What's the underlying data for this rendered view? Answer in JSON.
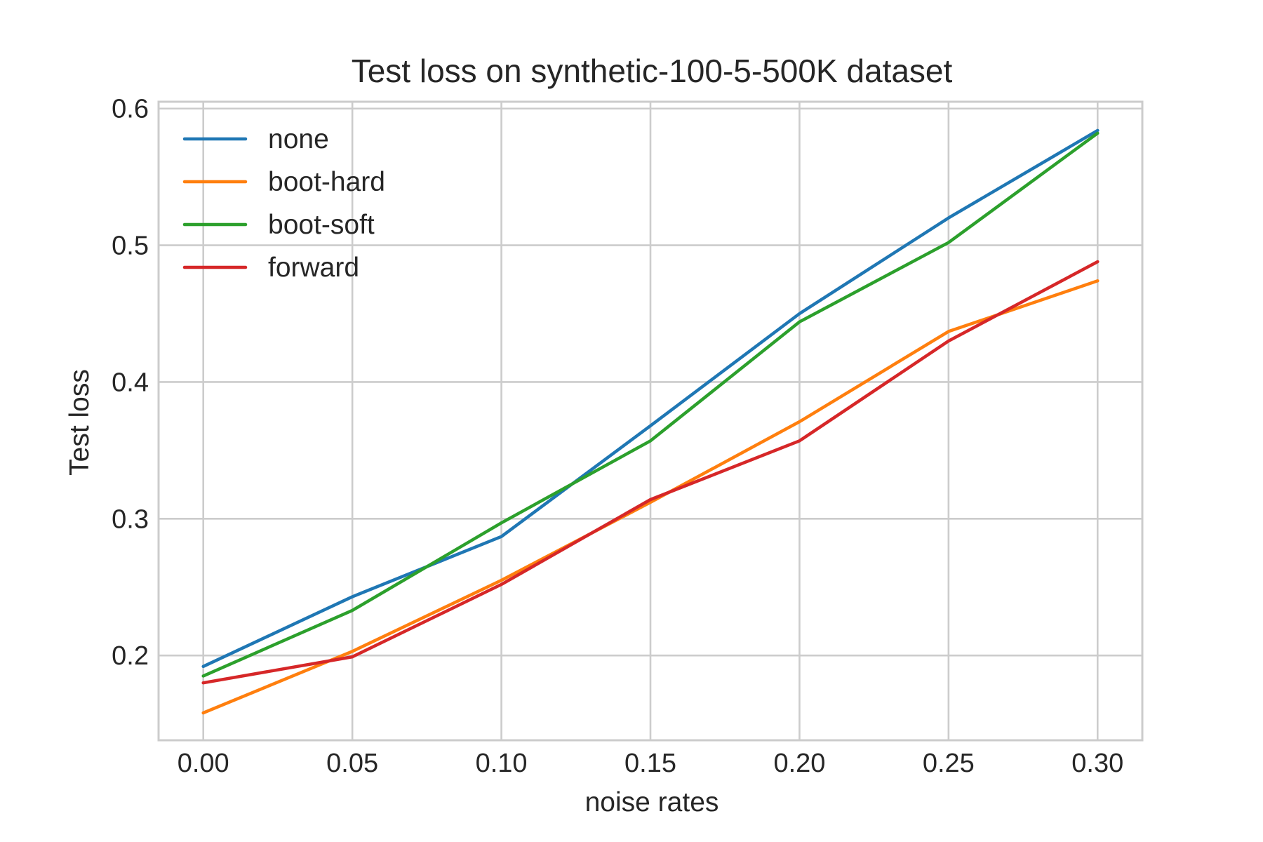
{
  "chart_data": {
    "type": "line",
    "title": "Test loss on synthetic-100-5-500K dataset",
    "xlabel": "noise rates",
    "ylabel": "Test loss",
    "x": [
      0.0,
      0.05,
      0.1,
      0.15,
      0.2,
      0.25,
      0.3
    ],
    "xticks": [
      "0.00",
      "0.05",
      "0.10",
      "0.15",
      "0.20",
      "0.25",
      "0.30"
    ],
    "yticks": [
      "0.2",
      "0.3",
      "0.4",
      "0.5",
      "0.6"
    ],
    "xlim": [
      -0.015,
      0.315
    ],
    "ylim": [
      0.138,
      0.605
    ],
    "grid": true,
    "legend_position": "top-left",
    "series": [
      {
        "name": "none",
        "color": "#1f77b4",
        "values": [
          0.192,
          0.243,
          0.287,
          0.368,
          0.45,
          0.52,
          0.584
        ]
      },
      {
        "name": "boot-hard",
        "color": "#ff7f0e",
        "values": [
          0.158,
          0.203,
          0.255,
          0.312,
          0.371,
          0.437,
          0.474
        ]
      },
      {
        "name": "boot-soft",
        "color": "#2ca02c",
        "values": [
          0.185,
          0.233,
          0.297,
          0.357,
          0.444,
          0.502,
          0.582
        ]
      },
      {
        "name": "forward",
        "color": "#d62728",
        "values": [
          0.18,
          0.199,
          0.252,
          0.314,
          0.357,
          0.43,
          0.488
        ]
      }
    ]
  }
}
